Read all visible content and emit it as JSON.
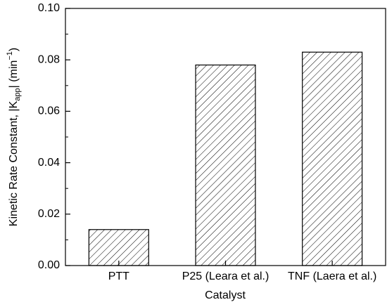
{
  "chart_data": {
    "type": "bar",
    "xlabel": "Catalyst",
    "ylabel": [
      "Kinetic Rate Constant, |K",
      "app",
      "| (min",
      "−1",
      ")"
    ],
    "categories": [
      "PTT",
      "P25 (Leara et al.)",
      "TNF (Laera et al.)"
    ],
    "values": [
      0.014,
      0.078,
      0.083
    ],
    "color": "#000000",
    "ylim": [
      0,
      0.1
    ],
    "yticks": [
      {
        "value": 0,
        "label": "0.00"
      },
      {
        "value": 0.02,
        "label": "0.02"
      },
      {
        "value": 0.04,
        "label": "0.04"
      },
      {
        "value": 0.06,
        "label": "0.06"
      },
      {
        "value": 0.08,
        "label": "0.08"
      },
      {
        "value": 0.1,
        "label": "0.10"
      }
    ]
  }
}
